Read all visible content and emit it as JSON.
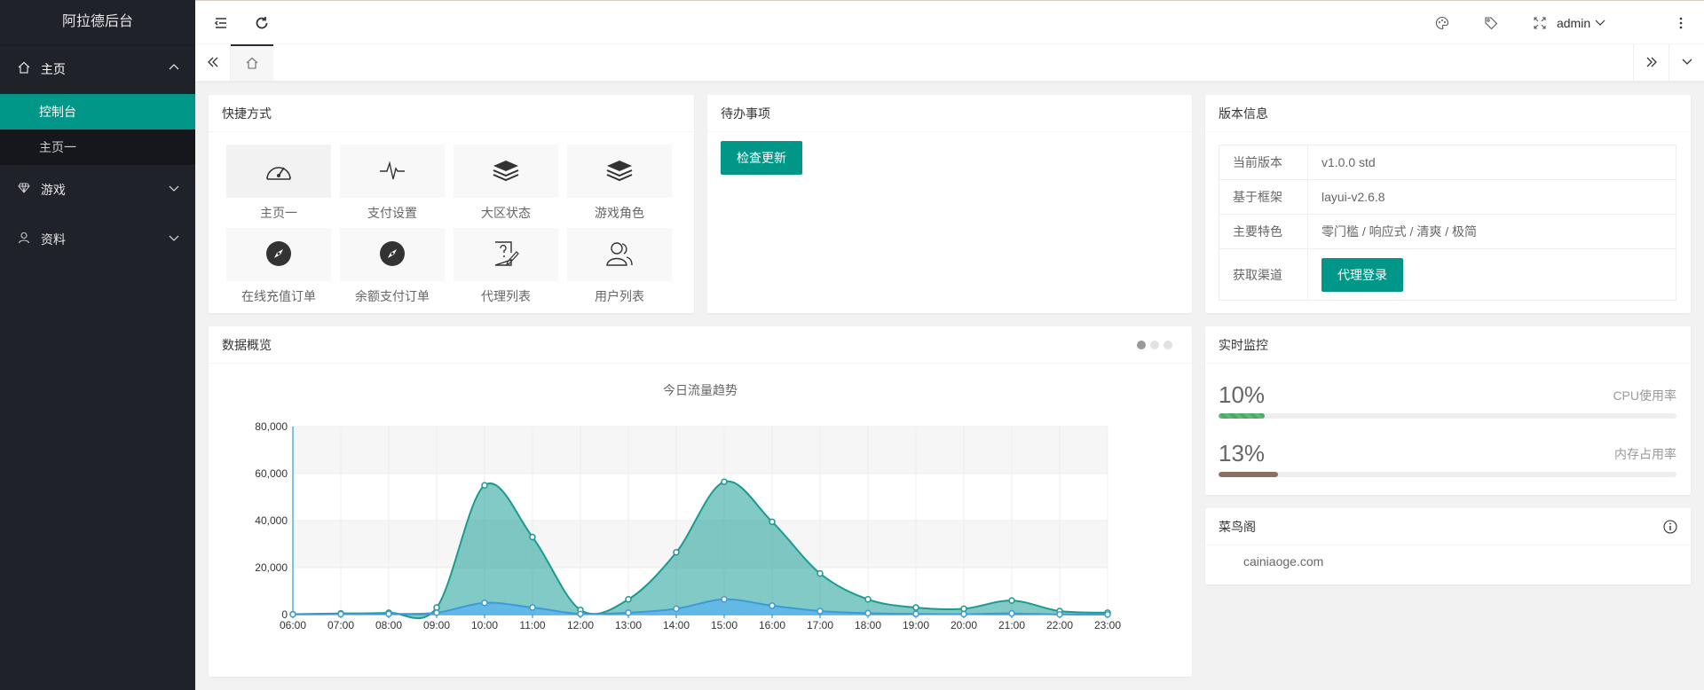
{
  "app": {
    "title": "阿拉德后台"
  },
  "sidebar": {
    "items": [
      {
        "label": "主页",
        "icon": "home-icon",
        "open": true,
        "children": [
          {
            "label": "控制台",
            "active": true
          },
          {
            "label": "主页一",
            "active": false
          }
        ]
      },
      {
        "label": "游戏",
        "icon": "diamond-icon"
      },
      {
        "label": "资料",
        "icon": "user-icon"
      }
    ]
  },
  "header": {
    "user": "admin"
  },
  "cards": {
    "shortcuts": {
      "title": "快捷方式",
      "items": [
        {
          "label": "主页一",
          "icon": "gauge-icon"
        },
        {
          "label": "支付设置",
          "icon": "pulse-icon"
        },
        {
          "label": "大区状态",
          "icon": "layers-icon"
        },
        {
          "label": "游戏角色",
          "icon": "layers-icon"
        },
        {
          "label": "在线充值订单",
          "icon": "compass-icon"
        },
        {
          "label": "余额支付订单",
          "icon": "compass-icon"
        },
        {
          "label": "代理列表",
          "icon": "help-edit-icon"
        },
        {
          "label": "用户列表",
          "icon": "users-icon"
        }
      ]
    },
    "todo": {
      "title": "待办事项",
      "button": "检查更新"
    },
    "version": {
      "title": "版本信息",
      "rows": [
        {
          "key": "当前版本",
          "value": "v1.0.0 std"
        },
        {
          "key": "基于框架",
          "value": "layui-v2.6.8"
        },
        {
          "key": "主要特色",
          "value": "零门槛 / 响应式 / 清爽 / 极简"
        },
        {
          "key": "获取渠道",
          "button": "代理登录"
        }
      ]
    },
    "overview": {
      "title": "数据概览"
    },
    "monitor": {
      "title": "实时监控",
      "rows": [
        {
          "percent": "10%",
          "label": "CPU使用率",
          "value": 0.1,
          "color": "#5fb878"
        },
        {
          "percent": "13%",
          "label": "内存占用率",
          "value": 0.13,
          "color": "#8d6e63"
        }
      ]
    },
    "link": {
      "title": "菜鸟阁",
      "text": "cainiaoge.com"
    }
  },
  "chart_data": {
    "type": "area",
    "title": "今日流量趋势",
    "x": [
      "06:00",
      "07:00",
      "08:00",
      "09:00",
      "10:00",
      "11:00",
      "12:00",
      "13:00",
      "14:00",
      "15:00",
      "16:00",
      "17:00",
      "18:00",
      "19:00",
      "20:00",
      "21:00",
      "22:00",
      "23:00"
    ],
    "ylim": [
      0,
      80000
    ],
    "yticks": [
      "0",
      "20,000",
      "40,000",
      "60,000",
      "80,000"
    ],
    "series": [
      {
        "values": [
          200,
          500,
          800,
          3000,
          55000,
          33000,
          2000,
          6500,
          26500,
          56500,
          39500,
          17500,
          6500,
          3000,
          2500,
          6000,
          1500,
          800
        ]
      },
      {
        "values": [
          100,
          200,
          300,
          800,
          5000,
          3000,
          300,
          800,
          2500,
          6500,
          3800,
          1500,
          600,
          300,
          200,
          500,
          100,
          50
        ]
      }
    ],
    "colors": [
      "#2ec7c9",
      "#5ab1ef"
    ],
    "grid": true
  },
  "colors": {
    "accent": "#009688",
    "sidebar": "#20222a"
  }
}
